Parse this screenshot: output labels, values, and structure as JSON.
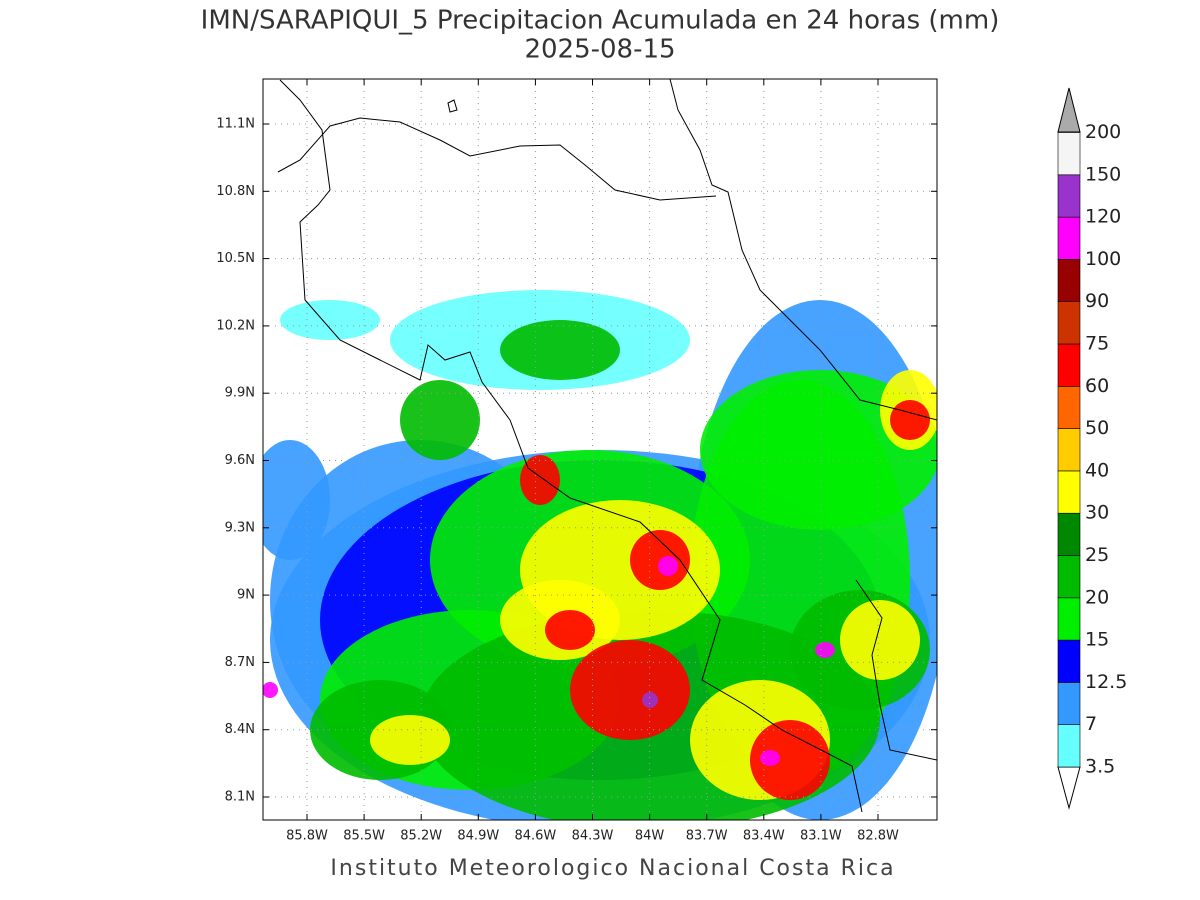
{
  "header": {
    "title": "IMN/SARAPIQUI_5 Precipitacion Acumulada en 24 horas (mm)",
    "date": "2025-08-15"
  },
  "map": {
    "lat_labels": [
      "11.1N",
      "10.8N",
      "10.5N",
      "10.2N",
      "9.9N",
      "9.6N",
      "9.3N",
      "9N",
      "8.7N",
      "8.4N",
      "8.1N"
    ],
    "lon_labels": [
      "85.8W",
      "85.5W",
      "85.2W",
      "84.9W",
      "84.6W",
      "84.3W",
      "84W",
      "83.7W",
      "83.4W",
      "83.1W",
      "82.8W"
    ],
    "grid": true
  },
  "colorbar": {
    "levels": [
      3.5,
      7,
      12.5,
      15,
      20,
      25,
      30,
      40,
      50,
      60,
      75,
      90,
      100,
      120,
      150,
      200
    ],
    "colors": [
      "#66ffff",
      "#3399ff",
      "#0000ff",
      "#00ee00",
      "#00bb00",
      "#008800",
      "#ffff00",
      "#ffcc00",
      "#ff6600",
      "#ff0000",
      "#cc3300",
      "#990000",
      "#ff00ff",
      "#9933cc",
      "#f5f5f5"
    ]
  },
  "footer": "Instituto Meteorologico Nacional Costa Rica"
}
